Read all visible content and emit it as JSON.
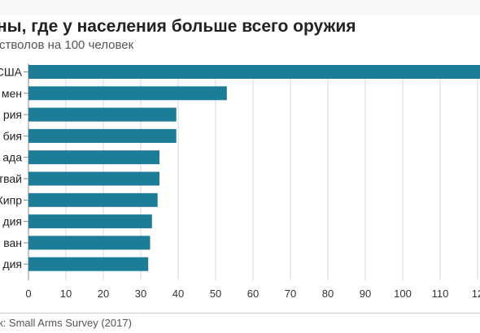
{
  "title": "ны, где у населения больше всего оружия",
  "subtitle": "стволов на 100 человек",
  "source": "к: Small Arms Survey (2017)",
  "colors": {
    "bar": "#1d7c96",
    "grid": "#d9d9d9",
    "axis": "#888888"
  },
  "chart_data": {
    "type": "bar",
    "orientation": "horizontal",
    "categories": [
      "США",
      "мен",
      "рия",
      "бия",
      "ада",
      "твай",
      "Кипр",
      "дия",
      "ван",
      "дия"
    ],
    "values": [
      121,
      53,
      39.5,
      39.5,
      35,
      35,
      34.5,
      33,
      32.5,
      32
    ],
    "xticks": [
      "0",
      "10",
      "20",
      "30",
      "40",
      "50",
      "60",
      "70",
      "80",
      "90",
      "100",
      "110",
      "12"
    ],
    "xlim": [
      0,
      120
    ],
    "grid": true
  }
}
